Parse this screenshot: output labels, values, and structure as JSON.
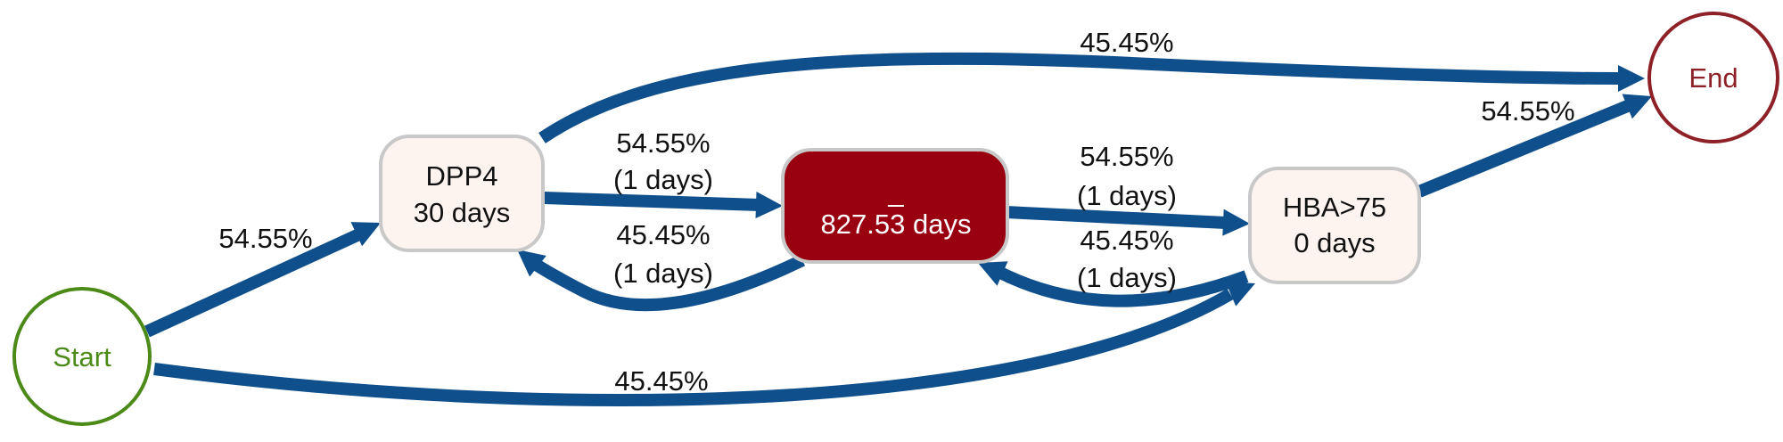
{
  "colors": {
    "edge": "#0f4f8c",
    "start_node": "#4c8a18",
    "end_node": "#8e2028",
    "activity_fill": "#fdf3ef",
    "activity_stroke": "#c8c8c8",
    "highlight_fill": "#990010",
    "highlight_text": "#ffffff"
  },
  "nodes": {
    "start": {
      "label": "Start"
    },
    "end": {
      "label": "End"
    },
    "dpp4": {
      "name": "DPP4",
      "duration": "30 days"
    },
    "blank": {
      "name": "_",
      "duration": "827.53 days"
    },
    "hba": {
      "name": "HBA>75",
      "duration": "0 days"
    }
  },
  "edges": {
    "start_dpp4": {
      "label": "54.55%"
    },
    "start_hba": {
      "label": "45.45%"
    },
    "dpp4_end": {
      "label": "45.45%"
    },
    "dpp4_blank": {
      "label": "54.55%",
      "sublabel": "(1 days)"
    },
    "blank_dpp4": {
      "label": "45.45%",
      "sublabel": "(1 days)"
    },
    "blank_hba": {
      "label": "54.55%",
      "sublabel": "(1 days)"
    },
    "hba_blank": {
      "label": "45.45%",
      "sublabel": "(1 days)"
    },
    "hba_end": {
      "label": "54.55%"
    }
  }
}
